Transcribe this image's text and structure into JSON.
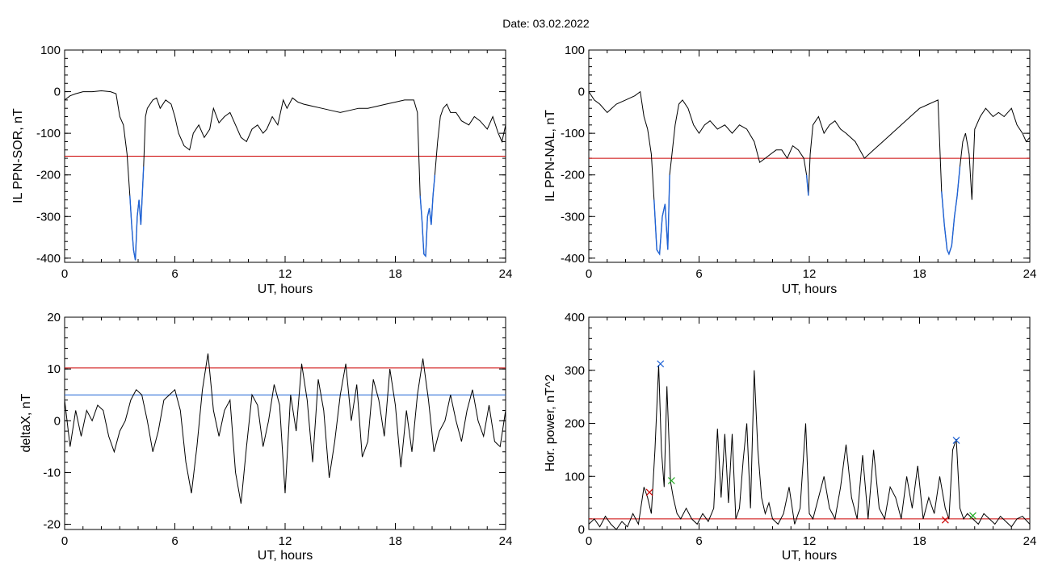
{
  "figure": {
    "title": "Date:  03.02.2022"
  },
  "colors": {
    "trace": "#000000",
    "active": "#1f63d6",
    "threshold_red": "#cc0000",
    "threshold_blue": "#1f63d6",
    "marker_green": "#22aa22"
  },
  "chart_data": [
    {
      "id": "sor",
      "type": "line",
      "xlabel": "UT, hours",
      "ylabel": "IL PPN-SOR, nT",
      "xlim": [
        0,
        24
      ],
      "ylim": [
        -410,
        100
      ],
      "xticks": [
        0,
        6,
        12,
        18,
        24
      ],
      "yticks": [
        100,
        0,
        -100,
        -200,
        -300,
        -400
      ],
      "hlines": [
        {
          "y": -155,
          "color": "#cc0000"
        }
      ],
      "highlight_below": -155,
      "series": [
        {
          "x": [
            0,
            0.3,
            0.6,
            1,
            1.5,
            2,
            2.5,
            2.8,
            3,
            3.2,
            3.4,
            3.55,
            3.65,
            3.75,
            3.85,
            3.95,
            4.05,
            4.15,
            4.3,
            4.4,
            4.5,
            4.8,
            5,
            5.2,
            5.5,
            5.8,
            6,
            6.2,
            6.5,
            6.8,
            7,
            7.3,
            7.6,
            7.9,
            8.1,
            8.4,
            8.7,
            9,
            9.3,
            9.6,
            9.9,
            10.2,
            10.5,
            10.8,
            11,
            11.3,
            11.6,
            11.9,
            12.1,
            12.4,
            12.7,
            13,
            13.5,
            14,
            14.5,
            15,
            15.5,
            16,
            16.5,
            17,
            17.5,
            18,
            18.5,
            19,
            19.2,
            19.35,
            19.45,
            19.55,
            19.65,
            19.75,
            19.85,
            19.95,
            20.05,
            20.15,
            20.3,
            20.45,
            20.6,
            20.8,
            21,
            21.3,
            21.6,
            22,
            22.3,
            22.6,
            23,
            23.3,
            23.6,
            23.8,
            24
          ],
          "y": [
            -20,
            -10,
            -5,
            0,
            0,
            2,
            0,
            -5,
            -60,
            -80,
            -150,
            -250,
            -320,
            -380,
            -405,
            -300,
            -260,
            -320,
            -180,
            -60,
            -40,
            -20,
            -15,
            -40,
            -20,
            -30,
            -60,
            -100,
            -130,
            -140,
            -100,
            -80,
            -110,
            -90,
            -40,
            -75,
            -60,
            -50,
            -80,
            -110,
            -120,
            -90,
            -80,
            -100,
            -90,
            -60,
            -80,
            -20,
            -40,
            -15,
            -25,
            -30,
            -35,
            -40,
            -45,
            -50,
            -45,
            -40,
            -40,
            -35,
            -30,
            -25,
            -20,
            -20,
            -50,
            -250,
            -310,
            -390,
            -395,
            -300,
            -280,
            -320,
            -250,
            -200,
            -120,
            -60,
            -40,
            -30,
            -50,
            -50,
            -70,
            -80,
            -60,
            -70,
            -90,
            -60,
            -100,
            -120,
            -80
          ]
        }
      ]
    },
    {
      "id": "nal",
      "type": "line",
      "xlabel": "UT, hours",
      "ylabel": "IL PPN-NAL, nT",
      "xlim": [
        0,
        24
      ],
      "ylim": [
        -410,
        100
      ],
      "xticks": [
        0,
        6,
        12,
        18,
        24
      ],
      "yticks": [
        100,
        0,
        -100,
        -200,
        -300,
        -400
      ],
      "hlines": [
        {
          "y": -160,
          "color": "#cc0000"
        }
      ],
      "highlight_below": -160,
      "series": [
        {
          "x": [
            0,
            0.3,
            0.6,
            1,
            1.5,
            2,
            2.5,
            2.8,
            3,
            3.2,
            3.4,
            3.55,
            3.7,
            3.85,
            4,
            4.15,
            4.3,
            4.4,
            4.5,
            4.7,
            4.9,
            5.1,
            5.4,
            5.7,
            6,
            6.3,
            6.6,
            7,
            7.4,
            7.8,
            8.2,
            8.6,
            9,
            9.3,
            9.6,
            9.9,
            10.2,
            10.5,
            10.8,
            11.1,
            11.4,
            11.7,
            11.85,
            11.95,
            12.05,
            12.2,
            12.5,
            12.8,
            13.1,
            13.4,
            13.7,
            14,
            14.5,
            15,
            15.5,
            16,
            16.5,
            17,
            17.5,
            18,
            18.5,
            19,
            19.2,
            19.35,
            19.5,
            19.6,
            19.75,
            19.9,
            20.05,
            20.2,
            20.35,
            20.5,
            20.7,
            20.85,
            21,
            21.3,
            21.6,
            22,
            22.3,
            22.6,
            23,
            23.3,
            23.6,
            23.8,
            24
          ],
          "y": [
            0,
            -20,
            -30,
            -50,
            -30,
            -20,
            -10,
            0,
            -60,
            -90,
            -150,
            -260,
            -380,
            -390,
            -300,
            -270,
            -380,
            -200,
            -160,
            -80,
            -30,
            -20,
            -40,
            -80,
            -100,
            -80,
            -70,
            -90,
            -80,
            -100,
            -80,
            -90,
            -120,
            -170,
            -160,
            -150,
            -140,
            -140,
            -160,
            -130,
            -140,
            -160,
            -200,
            -250,
            -150,
            -80,
            -60,
            -100,
            -80,
            -70,
            -90,
            -100,
            -120,
            -160,
            -140,
            -120,
            -100,
            -80,
            -60,
            -40,
            -30,
            -20,
            -240,
            -320,
            -380,
            -390,
            -370,
            -300,
            -250,
            -180,
            -120,
            -100,
            -150,
            -260,
            -90,
            -60,
            -40,
            -60,
            -50,
            -60,
            -40,
            -80,
            -100,
            -120,
            -110
          ]
        }
      ]
    },
    {
      "id": "deltax",
      "type": "line",
      "xlabel": "UT, hours",
      "ylabel": "deltaX, nT",
      "xlim": [
        0,
        24
      ],
      "ylim": [
        -21,
        20
      ],
      "xticks": [
        0,
        6,
        12,
        18,
        24
      ],
      "yticks": [
        20,
        10,
        0,
        -10,
        -20
      ],
      "hlines": [
        {
          "y": 10.2,
          "color": "#cc0000"
        },
        {
          "y": 5,
          "color": "#1f63d6"
        }
      ],
      "series": [
        {
          "x": [
            0,
            0.3,
            0.6,
            0.9,
            1.2,
            1.5,
            1.8,
            2.1,
            2.4,
            2.7,
            3,
            3.3,
            3.6,
            3.9,
            4.2,
            4.5,
            4.8,
            5.1,
            5.4,
            5.7,
            6,
            6.3,
            6.6,
            6.9,
            7.2,
            7.5,
            7.8,
            8.1,
            8.4,
            8.7,
            9,
            9.3,
            9.6,
            9.9,
            10.2,
            10.5,
            10.8,
            11.1,
            11.4,
            11.7,
            12,
            12.3,
            12.6,
            12.9,
            13.2,
            13.5,
            13.8,
            14.1,
            14.4,
            14.7,
            15,
            15.3,
            15.6,
            15.9,
            16.2,
            16.5,
            16.8,
            17.1,
            17.4,
            17.7,
            18,
            18.3,
            18.6,
            18.9,
            19.2,
            19.5,
            19.8,
            20.1,
            20.4,
            20.7,
            21,
            21.3,
            21.6,
            21.9,
            22.2,
            22.5,
            22.8,
            23.1,
            23.4,
            23.7,
            24
          ],
          "y": [
            4,
            -5,
            2,
            -3,
            2,
            0,
            3,
            2,
            -3,
            -6,
            -2,
            0,
            4,
            6,
            5,
            0,
            -6,
            -2,
            4,
            5,
            6,
            2,
            -8,
            -14,
            -5,
            6,
            13,
            2,
            -3,
            2,
            4,
            -10,
            -16,
            -5,
            5,
            3,
            -5,
            0,
            7,
            3,
            -14,
            5,
            -2,
            11,
            4,
            -8,
            8,
            2,
            -11,
            -4,
            5,
            11,
            0,
            7,
            -7,
            -4,
            8,
            4,
            -3,
            10,
            3,
            -9,
            2,
            -6,
            5,
            12,
            4,
            -6,
            -2,
            0,
            5,
            0,
            -4,
            2,
            6,
            0,
            -3,
            3,
            -4,
            -5,
            2
          ]
        }
      ]
    },
    {
      "id": "power",
      "type": "line",
      "xlabel": "UT, hours",
      "ylabel": "Hor. power, nT^2",
      "xlim": [
        0,
        24
      ],
      "ylim": [
        0,
        400
      ],
      "xticks": [
        0,
        6,
        12,
        18,
        24
      ],
      "yticks": [
        400,
        300,
        200,
        100,
        0
      ],
      "hlines": [
        {
          "y": 20,
          "color": "#cc0000"
        }
      ],
      "series": [
        {
          "x": [
            0,
            0.3,
            0.6,
            0.9,
            1.2,
            1.5,
            1.8,
            2.1,
            2.4,
            2.7,
            3,
            3.2,
            3.4,
            3.6,
            3.8,
            3.95,
            4.1,
            4.25,
            4.45,
            4.6,
            4.8,
            5,
            5.3,
            5.6,
            5.9,
            6.2,
            6.5,
            6.8,
            7,
            7.2,
            7.4,
            7.6,
            7.8,
            8,
            8.2,
            8.4,
            8.6,
            8.8,
            9,
            9.2,
            9.4,
            9.6,
            9.8,
            10,
            10.3,
            10.6,
            10.9,
            11.2,
            11.5,
            11.8,
            12,
            12.2,
            12.5,
            12.8,
            13.1,
            13.4,
            13.7,
            14,
            14.3,
            14.6,
            14.9,
            15.2,
            15.5,
            15.8,
            16.1,
            16.4,
            16.7,
            17,
            17.3,
            17.6,
            17.9,
            18.2,
            18.5,
            18.8,
            19.1,
            19.4,
            19.6,
            19.8,
            20,
            20.2,
            20.4,
            20.6,
            20.9,
            21.2,
            21.5,
            21.8,
            22.1,
            22.4,
            22.7,
            23,
            23.3,
            23.6,
            24
          ],
          "y": [
            10,
            20,
            5,
            25,
            10,
            0,
            15,
            5,
            30,
            10,
            80,
            60,
            30,
            150,
            310,
            150,
            80,
            270,
            90,
            60,
            30,
            20,
            40,
            20,
            10,
            30,
            15,
            40,
            190,
            60,
            180,
            50,
            180,
            20,
            40,
            130,
            200,
            40,
            300,
            150,
            60,
            30,
            50,
            20,
            10,
            30,
            80,
            10,
            40,
            200,
            30,
            20,
            60,
            100,
            40,
            20,
            80,
            160,
            60,
            20,
            140,
            20,
            150,
            40,
            20,
            80,
            60,
            20,
            100,
            40,
            120,
            20,
            60,
            30,
            100,
            40,
            20,
            150,
            170,
            40,
            20,
            30,
            20,
            10,
            30,
            20,
            10,
            25,
            15,
            5,
            20,
            25,
            10
          ]
        }
      ],
      "markers": [
        {
          "x": 3.9,
          "y": 312,
          "color": "#1f63d6"
        },
        {
          "x": 3.3,
          "y": 70,
          "color": "#cc0000"
        },
        {
          "x": 4.5,
          "y": 92,
          "color": "#22aa22"
        },
        {
          "x": 20.0,
          "y": 168,
          "color": "#1f63d6"
        },
        {
          "x": 19.4,
          "y": 18,
          "color": "#cc0000"
        },
        {
          "x": 20.9,
          "y": 26,
          "color": "#22aa22"
        }
      ]
    }
  ]
}
